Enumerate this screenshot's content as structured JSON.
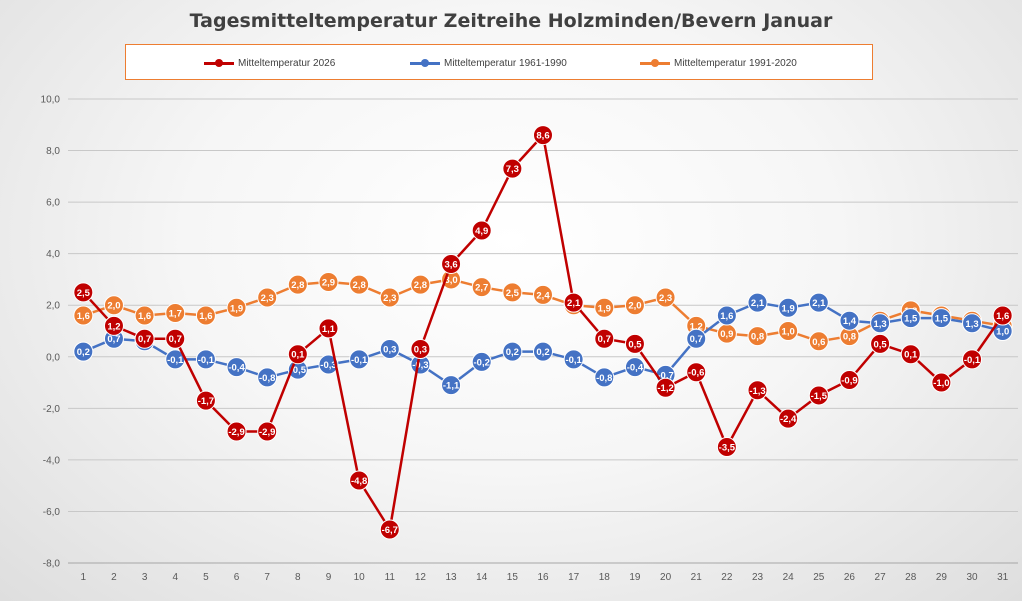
{
  "chart_data": {
    "type": "line",
    "title": "Tagesmitteltemperatur Zeitreihe Holzminden/Bevern Januar",
    "xlabel": "",
    "ylabel": "",
    "ylim": [
      -8,
      10
    ],
    "yticks": [
      -8,
      -6,
      -4,
      -2,
      0,
      2,
      4,
      6,
      8,
      10
    ],
    "ytick_labels": [
      "-8,0",
      "-6,0",
      "-4,0",
      "-2,0",
      "0,0",
      "2,0",
      "4,0",
      "6,0",
      "8,0",
      "10,0"
    ],
    "grid": true,
    "legend_position": "top",
    "categories": [
      "1",
      "2",
      "3",
      "4",
      "5",
      "6",
      "7",
      "8",
      "9",
      "10",
      "11",
      "12",
      "13",
      "14",
      "15",
      "16",
      "17",
      "18",
      "19",
      "20",
      "21",
      "22",
      "23",
      "24",
      "25",
      "26",
      "27",
      "28",
      "29",
      "30",
      "31"
    ],
    "series": [
      {
        "name": "Mitteltemperatur 2026",
        "color": "#c00000",
        "values": [
          2.5,
          1.2,
          0.7,
          0.7,
          -1.7,
          -2.9,
          -2.9,
          0.1,
          1.1,
          -4.8,
          -6.7,
          0.3,
          3.6,
          4.9,
          7.3,
          8.6,
          2.1,
          0.7,
          0.5,
          -1.2,
          -0.6,
          -3.5,
          -1.3,
          -2.4,
          -1.5,
          -0.9,
          0.5,
          0.1,
          -1.0,
          -0.1,
          1.6
        ],
        "labels": [
          "2,5",
          "1,2",
          "0,7",
          "0,7",
          "-1,7",
          "-2,9",
          "-2,9",
          "0,1",
          "1,1",
          "-4,8",
          "-6,7",
          "0,3",
          "3,6",
          "4,9",
          "7,3",
          "8,6",
          "2,1",
          "0,7",
          "0,5",
          "-1,2",
          "-0,6",
          "-3,5",
          "-1,3",
          "-2,4",
          "-1,5",
          "-0,9",
          "0,5",
          "0,1",
          "-1,0",
          "-0,1",
          "1,6"
        ]
      },
      {
        "name": "Mitteltemperatur 1961-1990",
        "color": "#4472c4",
        "values": [
          0.2,
          0.7,
          0.6,
          -0.1,
          -0.1,
          -0.4,
          -0.8,
          -0.5,
          -0.3,
          -0.1,
          0.3,
          -0.3,
          -1.1,
          -0.2,
          0.2,
          0.2,
          -0.1,
          -0.8,
          -0.4,
          -0.7,
          0.7,
          1.6,
          2.1,
          1.9,
          2.1,
          1.4,
          1.3,
          1.5,
          1.5,
          1.3,
          1.0
        ],
        "labels": [
          "0,2",
          "0,7",
          "0,6",
          "-0,1",
          "-0,1",
          "-0,4",
          "-0,8",
          "-0,5",
          "-0,3",
          "-0,1",
          "0,3",
          "-0,3",
          "-1,1",
          "-0,2",
          "0,2",
          "0,2",
          "-0,1",
          "-0,8",
          "-0,4",
          "-0,7",
          "0,7",
          "1,6",
          "2,1",
          "1,9",
          "2,1",
          "1,4",
          "1,3",
          "1,5",
          "1,5",
          "1,3",
          "1,0"
        ]
      },
      {
        "name": "Mitteltemperatur 1991-2020",
        "color": "#ed7d31",
        "values": [
          1.6,
          2.0,
          1.6,
          1.7,
          1.6,
          1.9,
          2.3,
          2.8,
          2.9,
          2.8,
          2.3,
          2.8,
          3.0,
          2.7,
          2.5,
          2.4,
          2.0,
          1.9,
          2.0,
          2.3,
          1.2,
          0.9,
          0.8,
          1.0,
          0.6,
          0.8,
          1.4,
          1.8,
          1.6,
          1.4,
          1.2
        ],
        "labels": [
          "1,6",
          "2,0",
          "1,6",
          "1,7",
          "1,6",
          "1,9",
          "2,3",
          "2,8",
          "2,9",
          "2,8",
          "2,3",
          "2,8",
          "3,0",
          "2,7",
          "2,5",
          "2,4",
          "2,0",
          "1,9",
          "2,0",
          "2,3",
          "1,2",
          "0,9",
          "0,8",
          "1,0",
          "0,6",
          "0,8",
          "1,4",
          "1,8",
          "1,6",
          "1,4",
          "1,2"
        ]
      }
    ]
  }
}
